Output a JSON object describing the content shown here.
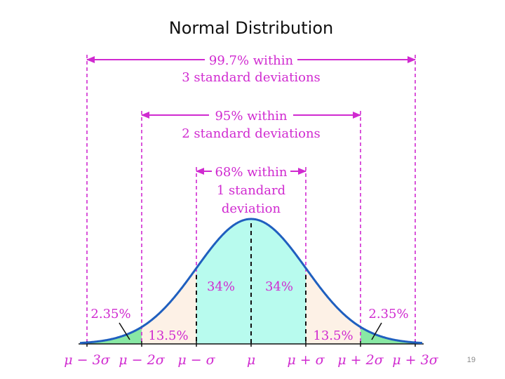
{
  "slide": {
    "title": "Normal Distribution",
    "page_number": "19"
  },
  "colors": {
    "curve": "#1f5fbf",
    "annotation": "#d02ad0",
    "center_fill": "#b8fbee",
    "mid_fill": "#fdf1e6",
    "tail_fill": "#88e8a4"
  },
  "brackets": [
    {
      "line1": "99.7% within",
      "line2": "3 standard deviations",
      "line3": ""
    },
    {
      "line1": "95% within",
      "line2": "2 standard deviations",
      "line3": ""
    },
    {
      "line1": "68% within",
      "line2": "1 standard",
      "line3": "deviation"
    }
  ],
  "regions": {
    "left_1sd": "34%",
    "right_1sd": "34%",
    "left_2sd": "13.5%",
    "right_2sd": "13.5%",
    "left_3sd": "2.35%",
    "right_3sd": "2.35%"
  },
  "ticks": [
    "μ − 3σ",
    "μ − 2σ",
    "μ − σ",
    "μ",
    "μ + σ",
    "μ + 2σ",
    "μ + 3σ"
  ]
}
